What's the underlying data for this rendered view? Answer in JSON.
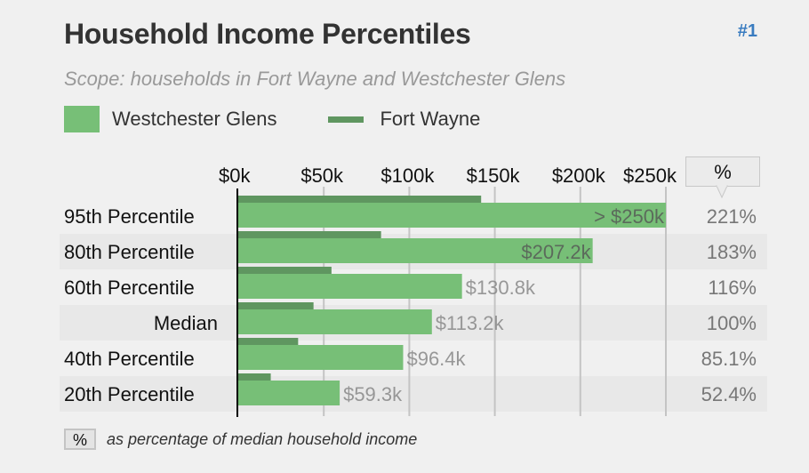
{
  "header": {
    "title": "Household Income Percentiles",
    "rank": "#1",
    "scope": "Scope: households in Fort Wayne and Westchester Glens"
  },
  "legend": {
    "primary": "Westchester Glens",
    "secondary": "Fort Wayne"
  },
  "percent_header": "%",
  "footer": {
    "box": "%",
    "note": "as percentage of median household income"
  },
  "colors": {
    "primary": "#77bf77",
    "secondary": "#5f9660",
    "band": "#e8e8e8",
    "grid": "#c4c4c4",
    "rank_link": "#3a7cc0"
  },
  "chart_data": {
    "type": "bar",
    "orientation": "horizontal",
    "title": "Household Income Percentiles",
    "xlabel": "",
    "ylabel": "",
    "xlim": [
      0,
      250
    ],
    "x_unit": "thousands USD",
    "x_ticks": [
      "$0k",
      "$50k",
      "$100k",
      "$150k",
      "$200k",
      "$250k"
    ],
    "x_tick_values": [
      0,
      50,
      100,
      150,
      200,
      250
    ],
    "grid": true,
    "legend_position": "top-left",
    "categories": [
      "95th Percentile",
      "80th Percentile",
      "60th Percentile",
      "Median",
      "40th Percentile",
      "20th Percentile"
    ],
    "series": [
      {
        "name": "Westchester Glens",
        "values": [
          250,
          207.2,
          130.8,
          113.2,
          96.4,
          59.3
        ],
        "labels": [
          "> $250k",
          "$207.2k",
          "$130.8k",
          "$113.2k",
          "$96.4k",
          "$59.3k"
        ],
        "percent_of_median": [
          "221%",
          "183%",
          "116%",
          "100%",
          "85.1%",
          "52.4%"
        ]
      },
      {
        "name": "Fort Wayne",
        "values": [
          142,
          83.5,
          54.5,
          44,
          35,
          19
        ]
      }
    ]
  }
}
